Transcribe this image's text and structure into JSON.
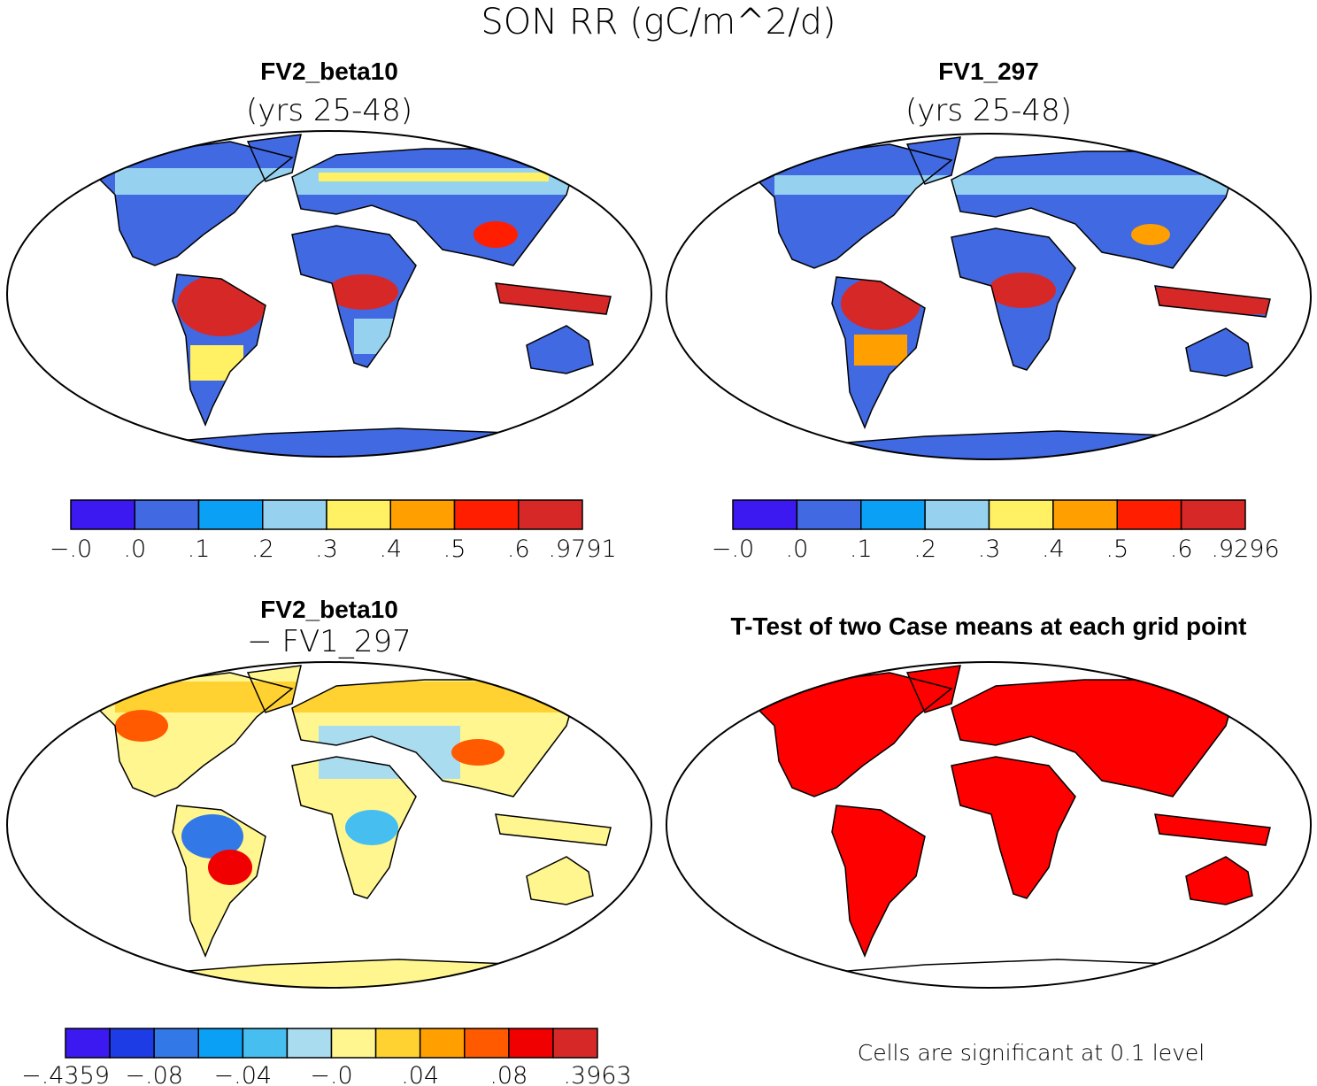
{
  "title": "SON RR (gC/m^2/d)",
  "panels": [
    {
      "title": "FV2_beta10",
      "subtitle": "(yrs 25-48)",
      "colorbar": {
        "colors": [
          "#3c19f0",
          "#4169e1",
          "#0aa0f5",
          "#96d2f0",
          "#fff064",
          "#ffa000",
          "#ff1e00",
          "#d72828"
        ],
        "labels": [
          "−.0",
          ".0",
          ".1",
          ".2",
          ".3",
          ".4",
          ".5",
          ".6",
          ".9791"
        ]
      }
    },
    {
      "title": "FV1_297",
      "subtitle": "(yrs 25-48)",
      "colorbar": {
        "colors": [
          "#3c19f0",
          "#4169e1",
          "#0aa0f5",
          "#96d2f0",
          "#fff064",
          "#ffa000",
          "#ff1e00",
          "#d72828"
        ],
        "labels": [
          "−.0",
          ".0",
          ".1",
          ".2",
          ".3",
          ".4",
          ".5",
          ".6",
          ".9296"
        ]
      }
    },
    {
      "title": "FV2_beta10",
      "subtitle": "− FV1_297",
      "colorbar": {
        "colors": [
          "#3c19f0",
          "#1e3ce6",
          "#3278e6",
          "#0aa0f5",
          "#46bef0",
          "#aadcf0",
          "#fff68f",
          "#ffd232",
          "#ffa000",
          "#ff5a00",
          "#f00000",
          "#d72828"
        ],
        "labels": [
          "−.4359",
          "−.08",
          "−.04",
          "−.0",
          ".04",
          ".08",
          ".3963"
        ]
      }
    },
    {
      "title": "T-Test of two Case means at each grid point",
      "note": "Cells are significant at 0.1 level"
    }
  ]
}
